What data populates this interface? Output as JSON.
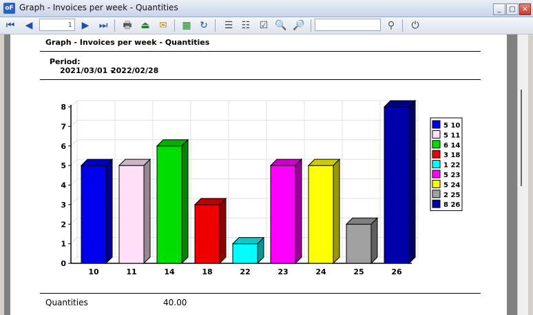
{
  "window": {
    "title": "Graph - Invoices per week - Quantities",
    "app_icon": "oF"
  },
  "toolbar": {
    "page_value": "1"
  },
  "report": {
    "title": "Graph - Invoices per week - Quantities",
    "period_label": "Period:",
    "period_from": "2021/03/01 -",
    "period_to": "2022/02/28",
    "footer_label": "Quantities",
    "footer_value": "40.00"
  },
  "chart_data": {
    "type": "bar",
    "categories": [
      "10",
      "11",
      "14",
      "18",
      "22",
      "23",
      "24",
      "25",
      "26"
    ],
    "values": [
      5,
      5,
      6,
      3,
      1,
      5,
      5,
      2,
      8
    ],
    "ylim": [
      0,
      8
    ],
    "yticks": [
      "0",
      "1",
      "2",
      "3",
      "4",
      "5",
      "6",
      "7",
      "8"
    ],
    "grid": true,
    "legend_position": "right",
    "legend": [
      "5 10",
      "5 11",
      "6 14",
      "3 18",
      "1 22",
      "5 23",
      "5 24",
      "2 25",
      "8 26"
    ],
    "colors": [
      "#0000ee",
      "#ffe0f8",
      "#00dd00",
      "#ee0000",
      "#00ffff",
      "#ff00ff",
      "#ffff00",
      "#a0a0a0",
      "#0000aa"
    ]
  }
}
